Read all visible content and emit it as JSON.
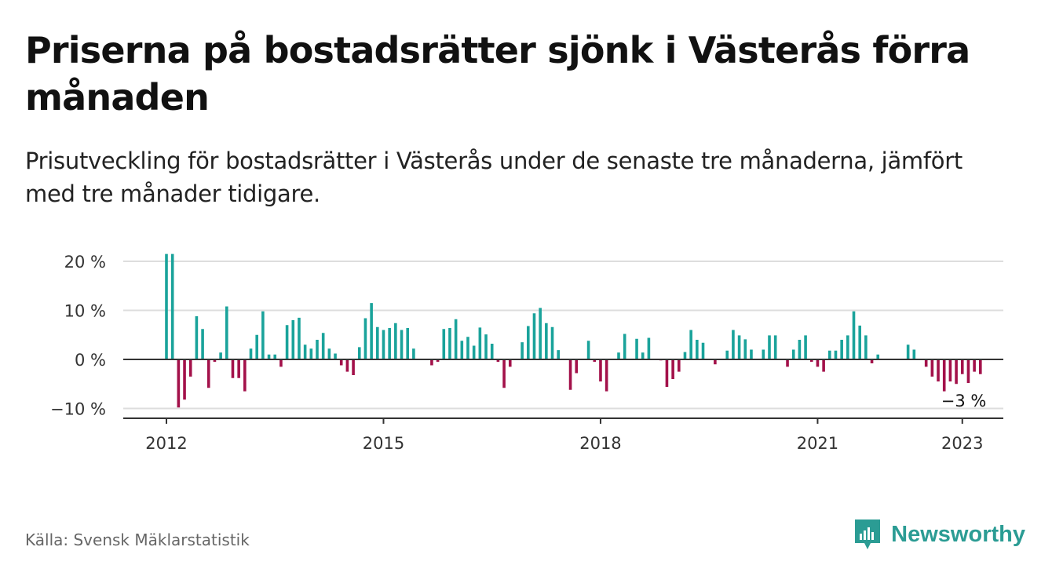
{
  "title": "Priserna på bostadsrätter sjönk i Västerås förra månaden",
  "subtitle": "Prisutveckling för bostadsrätter i Västerås under de senaste tre månaderna, jämfört med tre månader tidigare.",
  "source": "Källa: Svensk Mäklarstatistik",
  "brand": {
    "name": "Newsworthy",
    "icon": "newsworthy-logo-icon",
    "color": "#2b9c94"
  },
  "chart_data": {
    "type": "bar",
    "ylim": [
      -12,
      22
    ],
    "yticks": [
      20,
      10,
      0,
      -10
    ],
    "ytick_labels": [
      "20 %",
      "10 %",
      "0 %",
      "−10 %"
    ],
    "xticks": [
      {
        "label": "2012",
        "date": "2012-01"
      },
      {
        "label": "2015",
        "date": "2015-01"
      },
      {
        "label": "2018",
        "date": "2018-01"
      },
      {
        "label": "2021",
        "date": "2021-01"
      },
      {
        "label": "2023",
        "date": "2023-01"
      }
    ],
    "start": "2012-01",
    "colors": {
      "positive": "#1aa39b",
      "negative": "#a3114a"
    },
    "annotation": {
      "text": "−3 %",
      "date": "2023-01"
    },
    "values": [
      21.5,
      21.5,
      -9.8,
      -8.2,
      -3.5,
      8.8,
      6.2,
      -5.8,
      -0.5,
      1.4,
      10.8,
      -3.8,
      -3.8,
      -6.5,
      2.2,
      5.0,
      9.8,
      1.0,
      1.0,
      -1.5,
      7.0,
      8.0,
      8.5,
      3.0,
      2.2,
      4.0,
      5.4,
      2.2,
      1.2,
      -1.2,
      -2.5,
      -3.2,
      2.5,
      8.4,
      11.5,
      6.6,
      6.0,
      6.4,
      7.4,
      6.0,
      6.4,
      2.2,
      0,
      0,
      -1.2,
      -0.5,
      6.2,
      6.4,
      8.2,
      3.8,
      4.6,
      2.8,
      6.5,
      5.1,
      3.2,
      -0.5,
      -5.8,
      -1.5,
      0,
      3.5,
      6.8,
      9.4,
      10.5,
      7.4,
      6.6,
      1.9,
      0,
      -6.2,
      -2.8,
      0,
      3.8,
      -0.5,
      -4.5,
      -6.5,
      0,
      1.4,
      5.2,
      0,
      4.2,
      1.4,
      4.4,
      0,
      -0.2,
      -5.6,
      -4.0,
      -2.5,
      1.5,
      6.0,
      4.0,
      3.4,
      0,
      -1.0,
      0,
      1.8,
      6.0,
      4.9,
      4.1,
      2.0,
      0,
      2.0,
      4.9,
      4.9,
      0,
      -1.5,
      2.0,
      4.0,
      4.9,
      -0.5,
      -1.5,
      -2.5,
      1.8,
      1.8,
      4.0,
      4.9,
      9.8,
      6.9,
      4.9,
      -0.8,
      1.0,
      0,
      0,
      0,
      0,
      3.0,
      2.0,
      0,
      -1.5,
      -3.5,
      -4.5,
      -6.5,
      -4.5,
      -5.0,
      -3.0,
      -4.8,
      -2.5,
      -3.0
    ]
  }
}
